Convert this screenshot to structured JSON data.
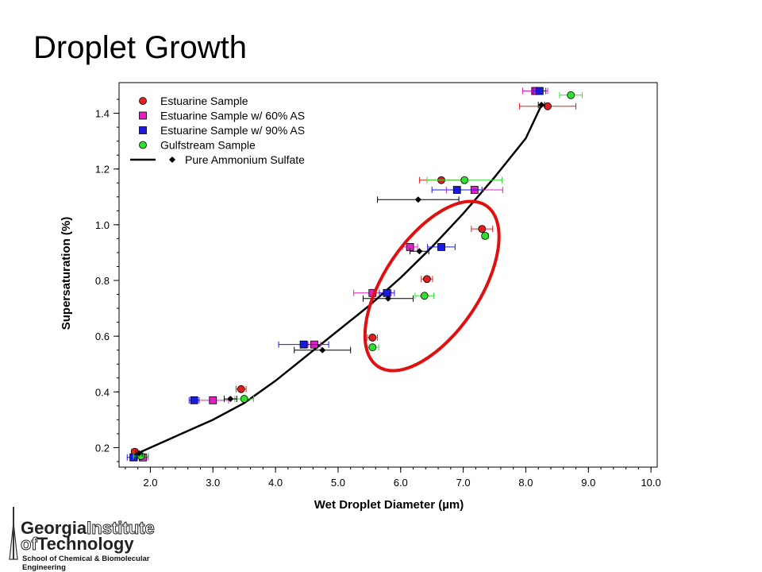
{
  "slide": {
    "title": "Droplet Growth"
  },
  "chart_data": {
    "type": "scatter",
    "title": "",
    "xlabel": "Wet Droplet Diameter (µm)",
    "ylabel": "Supersaturation (%)",
    "xlim": [
      1.5,
      10.1
    ],
    "ylim": [
      0.13,
      1.51
    ],
    "xticks": [
      "2.0",
      "3.0",
      "4.0",
      "5.0",
      "6.0",
      "7.0",
      "8.0",
      "9.0",
      "10.0"
    ],
    "yticks": [
      "0.2",
      "0.4",
      "0.6",
      "0.8",
      "1.0",
      "1.2",
      "1.4"
    ],
    "legend_position": "top-left",
    "series": [
      {
        "name": "Estuarine Sample",
        "marker": "circle",
        "color": "#e0201e",
        "points": [
          {
            "x": 1.75,
            "y": 0.185,
            "xerr": 0.05
          },
          {
            "x": 3.45,
            "y": 0.41,
            "xerr": 0.08
          },
          {
            "x": 5.55,
            "y": 0.595,
            "xerr": 0.08
          },
          {
            "x": 6.42,
            "y": 0.805,
            "xerr": 0.09
          },
          {
            "x": 7.3,
            "y": 0.985,
            "xerr": 0.17
          },
          {
            "x": 6.65,
            "y": 1.16,
            "xerr": 0.35
          },
          {
            "x": 8.35,
            "y": 1.425,
            "xerr": 0.45
          }
        ]
      },
      {
        "name": "Estuarine Sample w/ 60% AS",
        "marker": "square",
        "color": "#e020c0",
        "points": [
          {
            "x": 1.88,
            "y": 0.165,
            "xerr": 0.08
          },
          {
            "x": 3.0,
            "y": 0.37,
            "xerr": 0.25
          },
          {
            "x": 4.62,
            "y": 0.57,
            "xerr": 0.1
          },
          {
            "x": 5.55,
            "y": 0.755,
            "xerr": 0.3
          },
          {
            "x": 6.15,
            "y": 0.92,
            "xerr": 0.12
          },
          {
            "x": 7.18,
            "y": 1.125,
            "xerr": 0.45
          },
          {
            "x": 8.15,
            "y": 1.48,
            "xerr": 0.2
          }
        ]
      },
      {
        "name": "Estuarine Sample w/ 90% AS",
        "marker": "square",
        "color": "#1a1ae0",
        "points": [
          {
            "x": 1.73,
            "y": 0.165,
            "xerr": 0.1
          },
          {
            "x": 2.7,
            "y": 0.37,
            "xerr": 0.08
          },
          {
            "x": 4.45,
            "y": 0.57,
            "xerr": 0.4
          },
          {
            "x": 5.78,
            "y": 0.755,
            "xerr": 0.12
          },
          {
            "x": 6.65,
            "y": 0.92,
            "xerr": 0.22
          },
          {
            "x": 6.9,
            "y": 1.125,
            "xerr": 0.4
          },
          {
            "x": 8.22,
            "y": 1.48,
            "xerr": 0.1
          }
        ]
      },
      {
        "name": "Gulfstream Sample",
        "marker": "circle",
        "color": "#30e030",
        "points": [
          {
            "x": 1.85,
            "y": 0.17,
            "xerr": 0.12
          },
          {
            "x": 3.5,
            "y": 0.375,
            "xerr": 0.15
          },
          {
            "x": 5.55,
            "y": 0.56,
            "xerr": 0.1
          },
          {
            "x": 6.38,
            "y": 0.745,
            "xerr": 0.15
          },
          {
            "x": 7.35,
            "y": 0.96,
            "xerr": 0.05
          },
          {
            "x": 7.02,
            "y": 1.16,
            "xerr": 0.6
          },
          {
            "x": 8.72,
            "y": 1.465,
            "xerr": 0.18
          }
        ]
      },
      {
        "name": "Pure Ammonium Sulfate",
        "marker": "diamond",
        "color": "#000000",
        "line": true,
        "points": [
          {
            "x": 1.82,
            "y": 0.18,
            "xerr": 0.05
          },
          {
            "x": 3.28,
            "y": 0.375,
            "xerr": 0.1
          },
          {
            "x": 4.75,
            "y": 0.55,
            "xerr": 0.45
          },
          {
            "x": 5.8,
            "y": 0.735,
            "xerr": 0.4
          },
          {
            "x": 6.3,
            "y": 0.905,
            "xerr": 0.15
          },
          {
            "x": 6.28,
            "y": 1.09,
            "xerr": 0.65
          },
          {
            "x": 8.25,
            "y": 1.43,
            "xerr": 0.05
          }
        ],
        "fit_curve": [
          [
            1.8,
            0.18
          ],
          [
            2.5,
            0.25
          ],
          [
            3.0,
            0.3
          ],
          [
            3.5,
            0.36
          ],
          [
            4.0,
            0.44
          ],
          [
            4.5,
            0.53
          ],
          [
            5.0,
            0.62
          ],
          [
            5.5,
            0.71
          ],
          [
            6.0,
            0.81
          ],
          [
            6.5,
            0.92
          ],
          [
            7.0,
            1.04
          ],
          [
            7.5,
            1.17
          ],
          [
            8.0,
            1.31
          ],
          [
            8.25,
            1.43
          ]
        ]
      }
    ],
    "annotation": {
      "type": "ellipse",
      "color": "#e01010",
      "label": ""
    }
  },
  "logo": {
    "line1a": "Georgia",
    "line1b": "Institute",
    "line2a": "of",
    "line2b": "Technology",
    "subtitle": "School of Chemical & Biomolecular Engineering"
  }
}
